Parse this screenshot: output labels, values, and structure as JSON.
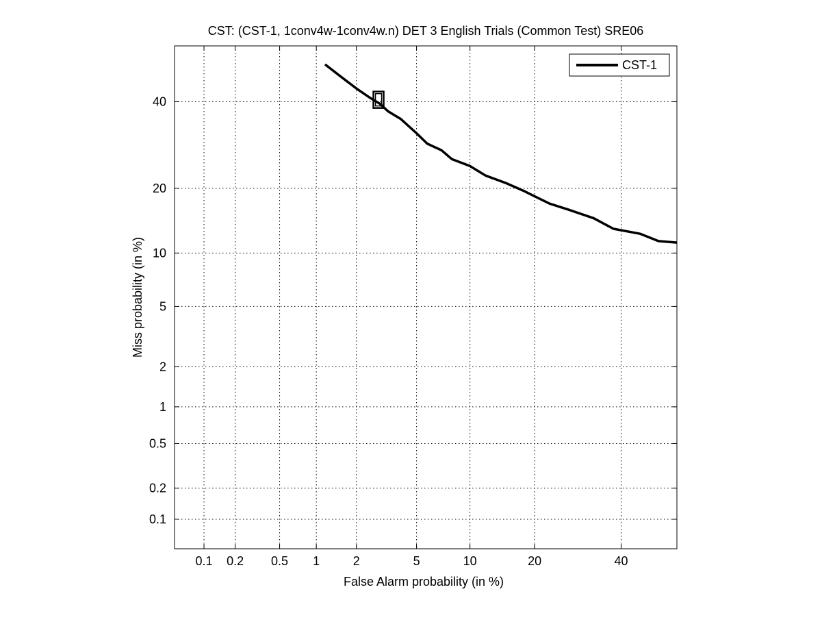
{
  "chart_data": {
    "type": "line",
    "title": "CST: (CST-1, 1conv4w-1conv4w.n) DET 3 English Trials (Common Test) SRE06",
    "xlabel": "False Alarm probability (in %)",
    "ylabel": "Miss probability (in %)",
    "x_scale": "normal-deviate (probit)",
    "y_scale": "normal-deviate (probit)",
    "xlim": [
      0.05,
      55
    ],
    "ylim": [
      0.05,
      55
    ],
    "x_ticks": [
      0.1,
      0.2,
      0.5,
      1,
      2,
      5,
      10,
      20,
      40
    ],
    "x_tick_labels": [
      "0.1",
      "0.2",
      "0.5",
      "1",
      "2",
      "5",
      "10",
      "20",
      "40"
    ],
    "y_ticks": [
      0.1,
      0.2,
      0.5,
      1,
      2,
      5,
      10,
      20,
      40
    ],
    "y_tick_labels": [
      "0.1",
      "0.2",
      "0.5",
      "1",
      "2",
      "5",
      "10",
      "20",
      "40"
    ],
    "grid": true,
    "legend_position": "top-right",
    "series": [
      {
        "name": "CST-1",
        "color": "#000000",
        "x": [
          1.17,
          1.5,
          2.0,
          2.5,
          2.9,
          3.3,
          4.0,
          5.0,
          5.8,
          7.0,
          8.0,
          10.0,
          12.0,
          15.0,
          18.0,
          20.0,
          23.0,
          27.0,
          33.0,
          38.0,
          45.0,
          50.0,
          55.0
        ],
        "y": [
          50.0,
          47.0,
          43.5,
          41.0,
          39.5,
          37.5,
          35.5,
          32.0,
          29.5,
          28.0,
          26.0,
          24.5,
          22.5,
          21.0,
          19.5,
          18.5,
          17.2,
          16.2,
          14.8,
          13.2,
          12.5,
          11.5,
          11.3
        ]
      }
    ],
    "marker": {
      "shape": "square",
      "x": 2.85,
      "y": 40.5,
      "color": "#000000"
    }
  }
}
